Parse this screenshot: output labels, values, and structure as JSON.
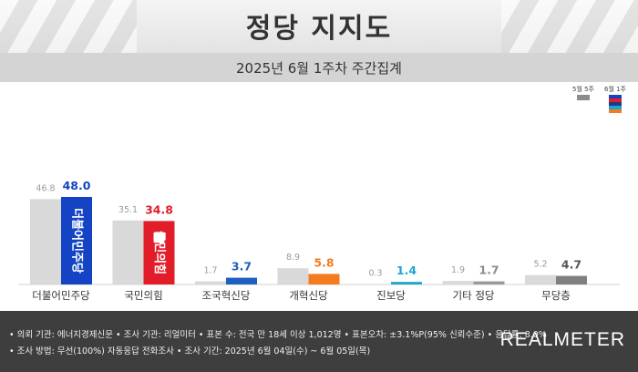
{
  "header": {
    "title": "정당 지지도",
    "subtitle": "2025년 6월 1주차 주간집계"
  },
  "legend": {
    "prev_label": "5월 5주",
    "curr_label": "6월 1주"
  },
  "colors": {
    "prev": "#d9d9d9",
    "curr_default": "#7f7f7f",
    "democratic": "#1443c4",
    "ppp": "#e11d2a",
    "rebuilding": "#1e5fc1",
    "reform": "#f47b20",
    "progressive": "#19a7cf",
    "other": "#9a9a9a",
    "none": "#808080"
  },
  "bar_logos": {
    "democratic": "더불어민주당",
    "ppp": "국민의힘"
  },
  "chart_data": {
    "type": "bar",
    "categories": [
      "더불어민주당",
      "국민의힘",
      "조국혁신당",
      "개혁신당",
      "진보당",
      "기타 정당",
      "무당층"
    ],
    "series": [
      {
        "name": "5월 5주",
        "values": [
          46.8,
          35.1,
          1.7,
          8.9,
          0.3,
          1.9,
          5.2
        ]
      },
      {
        "name": "6월 1주",
        "values": [
          48.0,
          34.8,
          3.7,
          5.8,
          1.4,
          1.7,
          4.7
        ]
      }
    ],
    "curr_label_colors": [
      "#1443c4",
      "#e11d2a",
      "#1e5fc1",
      "#f47b20",
      "#19a7cf",
      "#8c8c8c",
      "#555555"
    ],
    "curr_bar_colors": [
      "#1443c4",
      "#e11d2a",
      "#1e5fc1",
      "#f47b20",
      "#19a7cf",
      "#9a9a9a",
      "#808080"
    ],
    "title": "정당 지지도",
    "subtitle": "2025년 6월 1주차 주간집계",
    "ylim": [
      0,
      50
    ]
  },
  "footer": {
    "line1": "• 의뢰 기관: 에너지경제신문  • 조사 기관: 리얼미터  • 표본 수: 전국 만 18세 이상 1,012명  • 표본오차: ±3.1%P(95% 신뢰수준)  • 응답률: 8.0%",
    "line2": "• 조사 방법: 무선(100%) 자동응답 전화조사  • 조사 기간: 2025년 6월 04일(수) ~ 6월 05일(목)",
    "brand": "REALMETER"
  }
}
